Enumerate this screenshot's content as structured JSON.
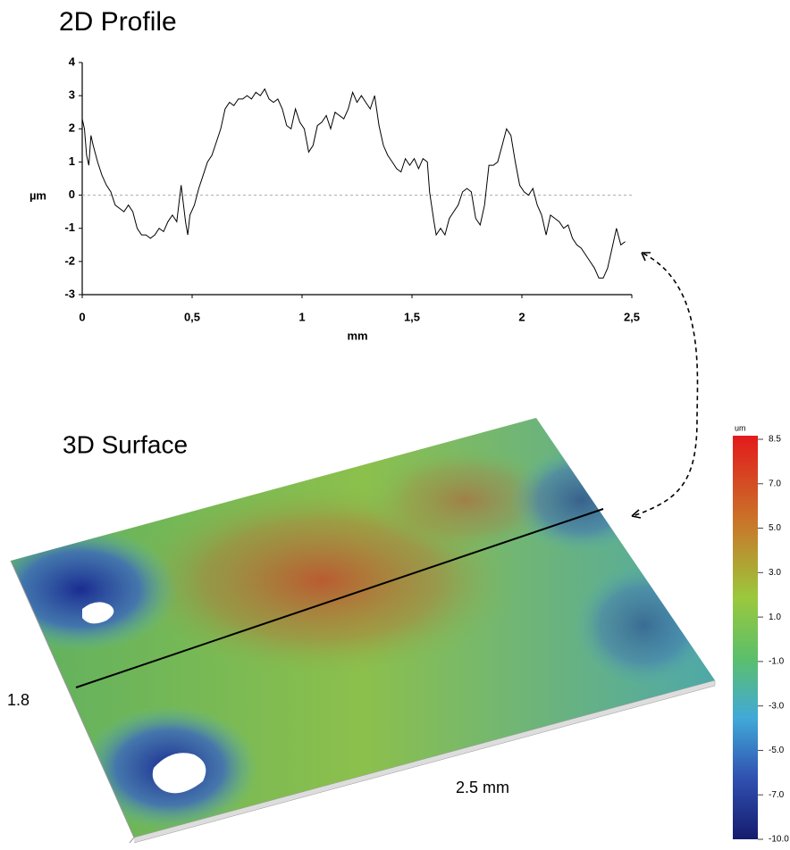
{
  "chart_data": {
    "type": "line",
    "title": "2D Profile",
    "xlabel": "mm",
    "ylabel": "µm",
    "color": "#000000",
    "zero_line": true,
    "x": [
      0,
      0.01,
      0.02,
      0.03,
      0.04,
      0.05,
      0.07,
      0.09,
      0.11,
      0.13,
      0.15,
      0.17,
      0.19,
      0.21,
      0.23,
      0.25,
      0.27,
      0.29,
      0.31,
      0.33,
      0.35,
      0.37,
      0.39,
      0.41,
      0.43,
      0.45,
      0.47,
      0.48,
      0.49,
      0.51,
      0.53,
      0.55,
      0.57,
      0.59,
      0.61,
      0.63,
      0.65,
      0.67,
      0.69,
      0.71,
      0.73,
      0.75,
      0.77,
      0.79,
      0.81,
      0.83,
      0.85,
      0.87,
      0.89,
      0.91,
      0.93,
      0.95,
      0.97,
      0.99,
      1.01,
      1.03,
      1.05,
      1.07,
      1.09,
      1.11,
      1.13,
      1.15,
      1.17,
      1.19,
      1.21,
      1.23,
      1.25,
      1.27,
      1.29,
      1.31,
      1.33,
      1.35,
      1.37,
      1.39,
      1.41,
      1.43,
      1.45,
      1.47,
      1.49,
      1.51,
      1.53,
      1.55,
      1.57,
      1.58,
      1.6,
      1.61,
      1.63,
      1.65,
      1.67,
      1.69,
      1.71,
      1.73,
      1.75,
      1.77,
      1.79,
      1.81,
      1.83,
      1.85,
      1.87,
      1.89,
      1.91,
      1.93,
      1.95,
      1.97,
      1.99,
      2.01,
      2.03,
      2.05,
      2.07,
      2.09,
      2.11,
      2.13,
      2.15,
      2.17,
      2.19,
      2.21,
      2.23,
      2.25,
      2.27,
      2.29,
      2.31,
      2.33,
      2.35,
      2.37,
      2.39,
      2.41,
      2.43,
      2.45,
      2.47
    ],
    "values": [
      2.3,
      2.0,
      1.2,
      0.9,
      1.8,
      1.5,
      1.0,
      0.6,
      0.3,
      0.1,
      -0.3,
      -0.4,
      -0.5,
      -0.3,
      -0.5,
      -1.0,
      -1.2,
      -1.2,
      -1.3,
      -1.2,
      -1.0,
      -1.1,
      -0.8,
      -0.6,
      -0.8,
      0.3,
      -0.8,
      -1.2,
      -0.6,
      -0.3,
      0.2,
      0.6,
      1.0,
      1.2,
      1.6,
      2.0,
      2.6,
      2.8,
      2.7,
      2.9,
      2.9,
      3.0,
      2.9,
      3.1,
      3.0,
      3.2,
      2.9,
      2.8,
      2.9,
      2.6,
      2.1,
      2.0,
      2.6,
      2.2,
      2.0,
      1.3,
      1.5,
      2.1,
      2.2,
      2.4,
      2.0,
      2.5,
      2.4,
      2.3,
      2.6,
      3.1,
      2.8,
      3.0,
      2.8,
      2.6,
      3.0,
      2.1,
      1.5,
      1.2,
      1.0,
      0.8,
      0.7,
      1.1,
      0.9,
      1.1,
      0.8,
      1.1,
      1.0,
      0.1,
      -0.8,
      -1.2,
      -1.0,
      -1.2,
      -0.7,
      -0.5,
      -0.3,
      0.1,
      0.2,
      0.1,
      -0.7,
      -0.9,
      -0.3,
      0.9,
      0.9,
      1.0,
      1.5,
      2.0,
      1.8,
      1.0,
      0.3,
      0.1,
      0.0,
      0.2,
      -0.3,
      -0.6,
      -1.2,
      -0.6,
      -0.7,
      -0.8,
      -1.0,
      -0.9,
      -1.3,
      -1.5,
      -1.6,
      -1.8,
      -2.0,
      -2.2,
      -2.5,
      -2.5,
      -2.2,
      -1.6,
      -1.0,
      -1.5,
      -1.4
    ],
    "xlim": [
      0,
      2.5
    ],
    "xticks": [
      0,
      {
        "value": 0.5,
        "label": "0,5"
      },
      1,
      {
        "value": 1.5,
        "label": "1,5"
      },
      2,
      {
        "value": 2.5,
        "label": "2,5"
      }
    ],
    "ylim": [
      -3,
      4
    ],
    "yticks": [
      -3,
      -2,
      -1,
      0,
      1,
      2,
      3,
      4
    ]
  },
  "surface": {
    "title": "3D Surface",
    "width_label": "2.5 mm",
    "height_label": "1.8",
    "colorbar": {
      "unit": "um",
      "labels": [
        "8.5",
        "7.0",
        "5.0",
        "3.0",
        "1.0",
        "-1.0",
        "-3.0",
        "-5.0",
        "-7.0",
        "-10.0"
      ]
    }
  }
}
